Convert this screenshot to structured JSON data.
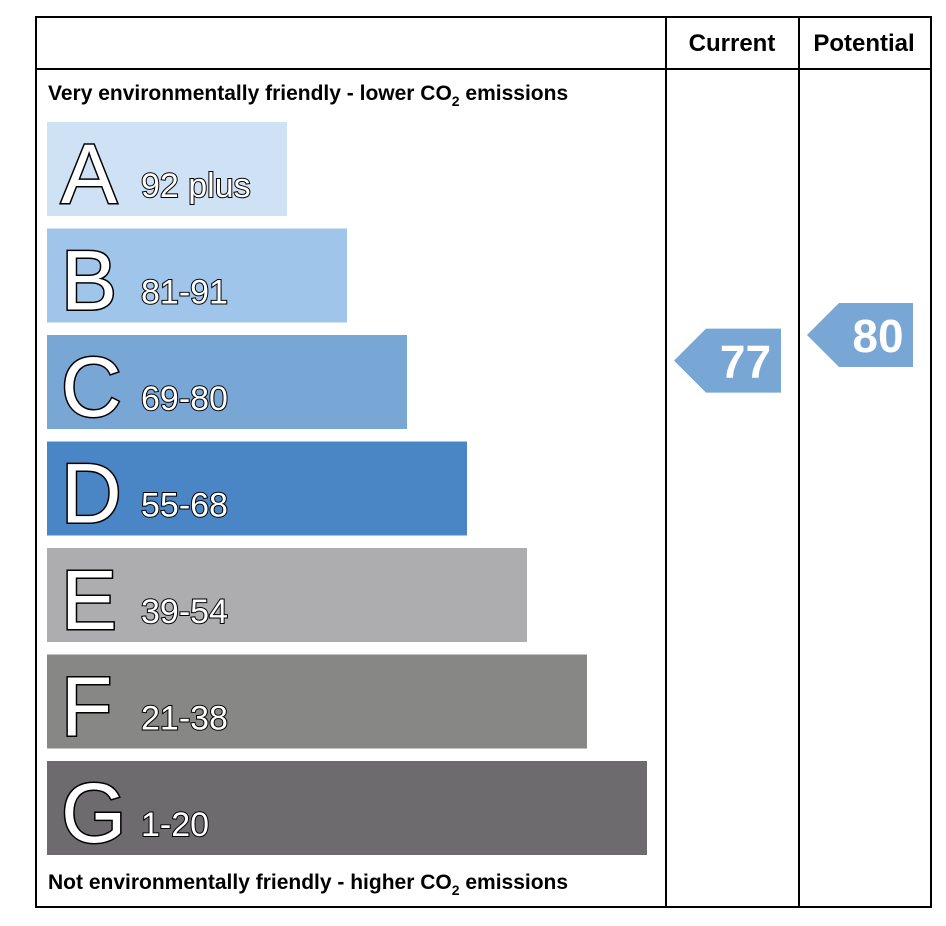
{
  "header": {
    "current_label": "Current",
    "potential_label": "Potential"
  },
  "top_note": {
    "prefix": "Very environmentally friendly - lower CO",
    "subscript": "2",
    "suffix": " emissions"
  },
  "bottom_note": {
    "prefix": "Not environmentally friendly - higher CO",
    "subscript": "2",
    "suffix": " emissions"
  },
  "chart_data": {
    "type": "bar",
    "categories": [
      "A",
      "B",
      "C",
      "D",
      "E",
      "F",
      "G"
    ],
    "ranges": [
      "92 plus",
      "81-91",
      "69-80",
      "55-68",
      "39-54",
      "21-38",
      "1-20"
    ],
    "colors": [
      "#cfe2f5",
      "#9fc6ea",
      "#79a7d5",
      "#4a86c6",
      "#adacae",
      "#878886",
      "#6d6b6e"
    ],
    "current": {
      "value": 77,
      "color": "#79a7d5"
    },
    "potential": {
      "value": 80,
      "color": "#79a7d5"
    }
  }
}
